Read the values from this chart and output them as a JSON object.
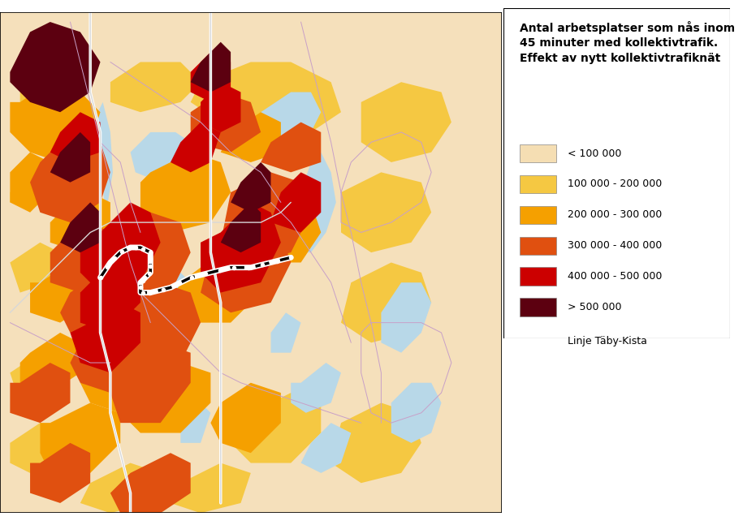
{
  "title_lines": [
    "Antal arbetsplatser som nås inom",
    "45 minuter med kollektivtrafik.",
    "Effekt av nytt kollektivtrafiknät"
  ],
  "legend_entries": [
    {
      "label": "< 100 000",
      "color": "#F5DEB3"
    },
    {
      "label": "100 000 - 200 000",
      "color": "#F5C842"
    },
    {
      "label": "200 000 - 300 000",
      "color": "#F5A000"
    },
    {
      "label": "300 000 - 400 000",
      "color": "#E05010"
    },
    {
      "label": "400 000 - 500 000",
      "color": "#CC0000"
    },
    {
      "label": "> 500 000",
      "color": "#5C0010"
    }
  ],
  "line_label": "Linje Täby-Kista",
  "map_bg": "#F5E0BB",
  "water_color": "#B8D8E8",
  "border_color": "#C8A0C8",
  "fig_width": 9.15,
  "fig_height": 6.47,
  "legend_fontsize": 9,
  "legend_title_fontsize": 10,
  "c0": "#F5E0BB",
  "c1": "#F5C842",
  "c2": "#F5A000",
  "c3": "#E05010",
  "c4": "#CC0000",
  "c5": "#5C0010",
  "water": "#B8D8E8",
  "road_light": "#D8D8D8",
  "road_white": "#FFFFFF",
  "boundary": "#C8A0C8"
}
